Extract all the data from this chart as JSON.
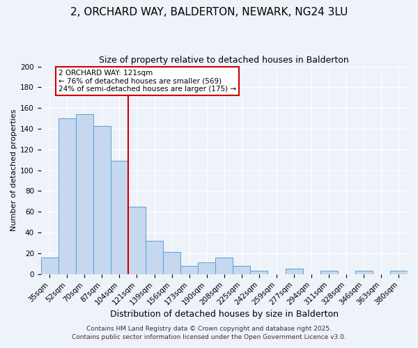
{
  "title": "2, ORCHARD WAY, BALDERTON, NEWARK, NG24 3LU",
  "subtitle": "Size of property relative to detached houses in Balderton",
  "xlabel": "Distribution of detached houses by size in Balderton",
  "ylabel": "Number of detached properties",
  "categories": [
    "35sqm",
    "52sqm",
    "70sqm",
    "87sqm",
    "104sqm",
    "121sqm",
    "139sqm",
    "156sqm",
    "173sqm",
    "190sqm",
    "208sqm",
    "225sqm",
    "242sqm",
    "259sqm",
    "277sqm",
    "294sqm",
    "311sqm",
    "328sqm",
    "346sqm",
    "363sqm",
    "380sqm"
  ],
  "values": [
    16,
    150,
    154,
    143,
    109,
    65,
    32,
    21,
    8,
    11,
    16,
    8,
    3,
    0,
    5,
    0,
    3,
    0,
    3,
    0,
    3
  ],
  "bar_color": "#c5d8f0",
  "bar_edge_color": "#5a9fd4",
  "vline_color": "#cc0000",
  "annotation_title": "2 ORCHARD WAY: 121sqm",
  "annotation_line2": "← 76% of detached houses are smaller (569)",
  "annotation_line3": "24% of semi-detached houses are larger (175) →",
  "annotation_box_edge_color": "#cc0000",
  "annotation_box_face_color": "#ffffff",
  "ylim": [
    0,
    200
  ],
  "yticks": [
    0,
    20,
    40,
    60,
    80,
    100,
    120,
    140,
    160,
    180,
    200
  ],
  "footer1": "Contains HM Land Registry data © Crown copyright and database right 2025.",
  "footer2": "Contains public sector information licensed under the Open Government Licence v3.0.",
  "background_color": "#eef2f9",
  "grid_color": "#ffffff",
  "title_fontsize": 11,
  "subtitle_fontsize": 9,
  "xlabel_fontsize": 9,
  "ylabel_fontsize": 8,
  "tick_fontsize": 7.5,
  "annotation_fontsize": 7.5,
  "footer_fontsize": 6.5
}
